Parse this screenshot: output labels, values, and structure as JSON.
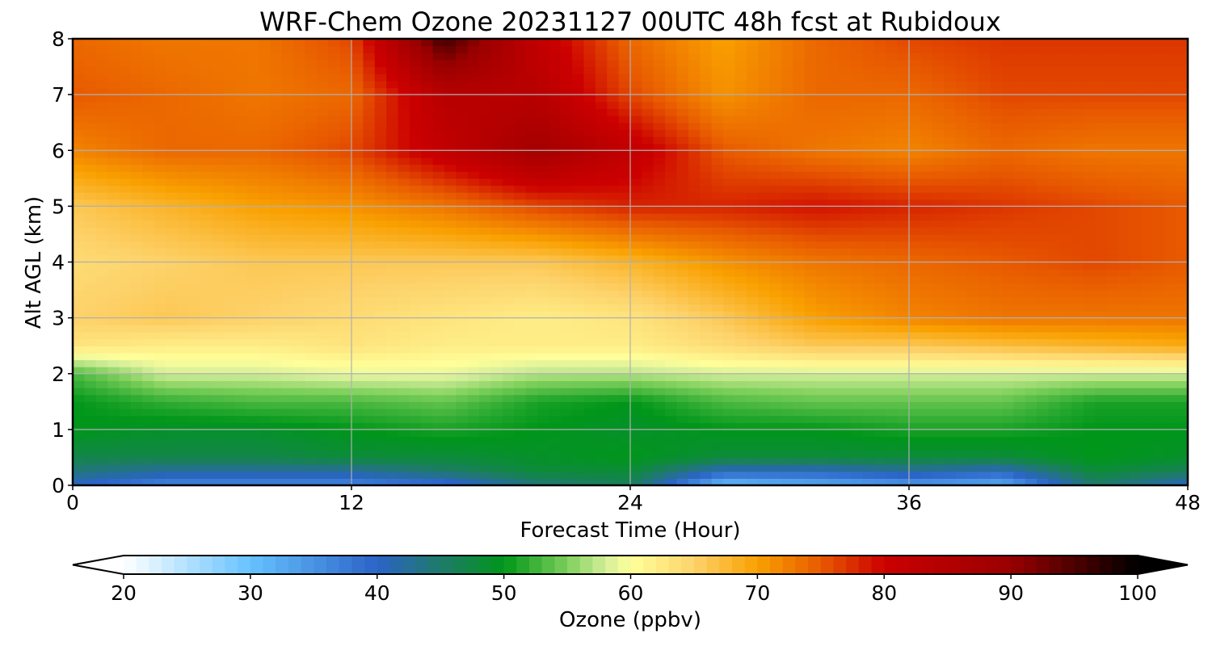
{
  "chart_data": {
    "type": "heatmap",
    "title": "WRF-Chem Ozone  20231127 00UTC 48h fcst at Rubidoux",
    "xlabel": "Forecast Time (Hour)",
    "ylabel": "Alt AGL (km)",
    "xlim": [
      0,
      48
    ],
    "ylim": [
      0,
      8
    ],
    "x_ticks": [
      "0",
      "12",
      "24",
      "36",
      "48"
    ],
    "y_ticks": [
      "0",
      "1",
      "2",
      "3",
      "4",
      "5",
      "6",
      "7",
      "8"
    ],
    "grid": true,
    "x": [
      0,
      4,
      8,
      12,
      16,
      20,
      24,
      28,
      32,
      36,
      40,
      44,
      48
    ],
    "y": [
      0,
      0.25,
      0.5,
      1,
      1.5,
      2,
      2.5,
      3,
      4,
      5,
      6,
      7,
      8
    ],
    "z": [
      [
        40,
        36,
        36,
        36,
        38,
        44,
        46,
        30,
        32,
        34,
        32,
        45,
        40
      ],
      [
        44,
        42,
        42,
        42,
        45,
        48,
        48,
        40,
        40,
        42,
        40,
        48,
        46
      ],
      [
        47,
        47,
        47,
        48,
        48,
        49,
        50,
        48,
        48,
        48,
        48,
        50,
        49
      ],
      [
        50,
        49,
        49,
        50,
        51,
        50,
        49,
        50,
        50,
        51,
        51,
        50,
        50
      ],
      [
        50,
        52,
        53,
        53,
        54,
        51,
        50,
        53,
        54,
        54,
        54,
        51,
        51
      ],
      [
        53,
        58,
        58,
        59,
        59,
        57,
        57,
        58,
        58,
        58,
        58,
        58,
        58
      ],
      [
        63,
        62,
        62,
        63,
        62,
        62,
        62,
        64,
        66,
        66,
        67,
        68,
        69
      ],
      [
        65,
        66,
        65,
        64,
        63,
        62,
        63,
        66,
        70,
        72,
        73,
        73,
        73
      ],
      [
        64,
        65,
        66,
        66,
        66,
        66,
        68,
        71,
        73,
        74,
        75,
        76,
        75
      ],
      [
        66,
        68,
        70,
        71,
        73,
        76,
        78,
        78,
        79,
        78,
        77,
        76,
        75
      ],
      [
        72,
        74,
        74,
        76,
        82,
        88,
        82,
        75,
        73,
        72,
        74,
        73,
        73
      ],
      [
        75,
        74,
        73,
        74,
        84,
        84,
        76,
        71,
        74,
        74,
        76,
        76,
        76
      ],
      [
        74,
        73,
        73,
        76,
        96,
        82,
        74,
        70,
        74,
        76,
        77,
        77,
        77
      ]
    ],
    "colorbar": {
      "label": "Ozone  (ppbv)",
      "ticks": [
        "20",
        "30",
        "40",
        "50",
        "60",
        "70",
        "80",
        "90",
        "100"
      ],
      "range": [
        20,
        100
      ],
      "extend": "both",
      "orientation": "horizontal",
      "colors": [
        {
          "value": 20,
          "color": "#ffffff"
        },
        {
          "value": 30,
          "color": "#66c2ff"
        },
        {
          "value": 40,
          "color": "#2b63c7"
        },
        {
          "value": 45,
          "color": "#1f7a6a"
        },
        {
          "value": 50,
          "color": "#00961a"
        },
        {
          "value": 55,
          "color": "#7ccf5a"
        },
        {
          "value": 58,
          "color": "#d4ee9a"
        },
        {
          "value": 60,
          "color": "#ffff9a"
        },
        {
          "value": 65,
          "color": "#fdd26a"
        },
        {
          "value": 70,
          "color": "#f9a000"
        },
        {
          "value": 75,
          "color": "#e85a00"
        },
        {
          "value": 80,
          "color": "#cc0000"
        },
        {
          "value": 90,
          "color": "#990000"
        },
        {
          "value": 100,
          "color": "#000000"
        }
      ]
    }
  }
}
